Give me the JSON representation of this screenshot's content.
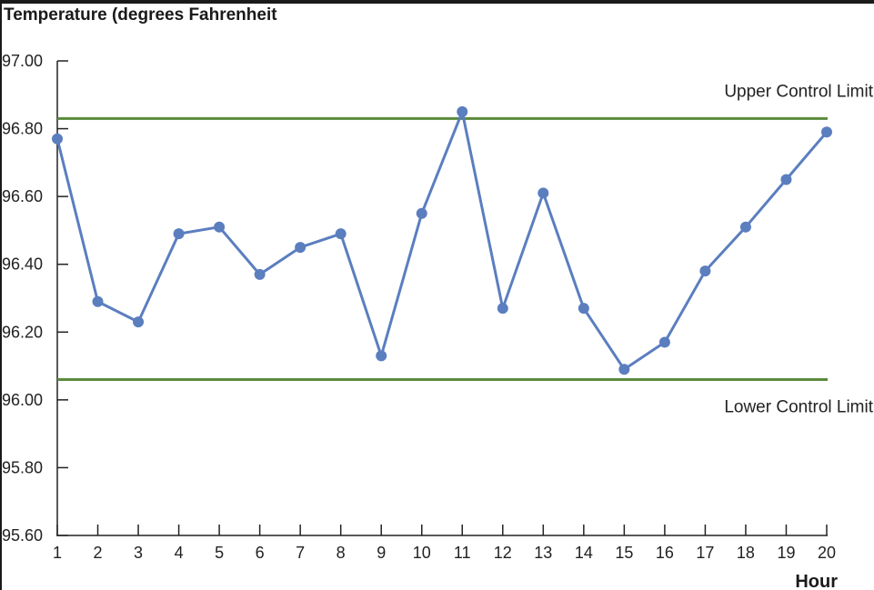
{
  "chart_data": {
    "type": "line",
    "ylabel": "Temperature (degrees Fahrenheit",
    "xlabel": "Hour",
    "x": [
      1,
      2,
      3,
      4,
      5,
      6,
      7,
      8,
      9,
      10,
      11,
      12,
      13,
      14,
      15,
      16,
      17,
      18,
      19,
      20
    ],
    "ylim": [
      95.6,
      97.0
    ],
    "yticks": [
      "95.60",
      "95.80",
      "96.00",
      "96.20",
      "96.40",
      "96.60",
      "96.80",
      "97.00"
    ],
    "xticks": [
      "1",
      "2",
      "3",
      "4",
      "5",
      "6",
      "7",
      "8",
      "9",
      "10",
      "11",
      "12",
      "13",
      "14",
      "15",
      "16",
      "17",
      "18",
      "19",
      "20"
    ],
    "series": [
      {
        "values": [
          96.77,
          96.29,
          96.23,
          96.49,
          96.51,
          96.37,
          96.45,
          96.49,
          96.13,
          96.55,
          96.85,
          96.27,
          96.61,
          96.27,
          96.09,
          96.17,
          96.38,
          96.51,
          96.65,
          96.79
        ],
        "color": "#5b7ebf"
      }
    ],
    "reference_lines": [
      {
        "label": "Upper Control Limit",
        "value": 96.83,
        "color": "#5a8a3c"
      },
      {
        "label": "Lower Control Limit",
        "value": 96.06,
        "color": "#5a8a3c"
      }
    ],
    "grid": false
  }
}
